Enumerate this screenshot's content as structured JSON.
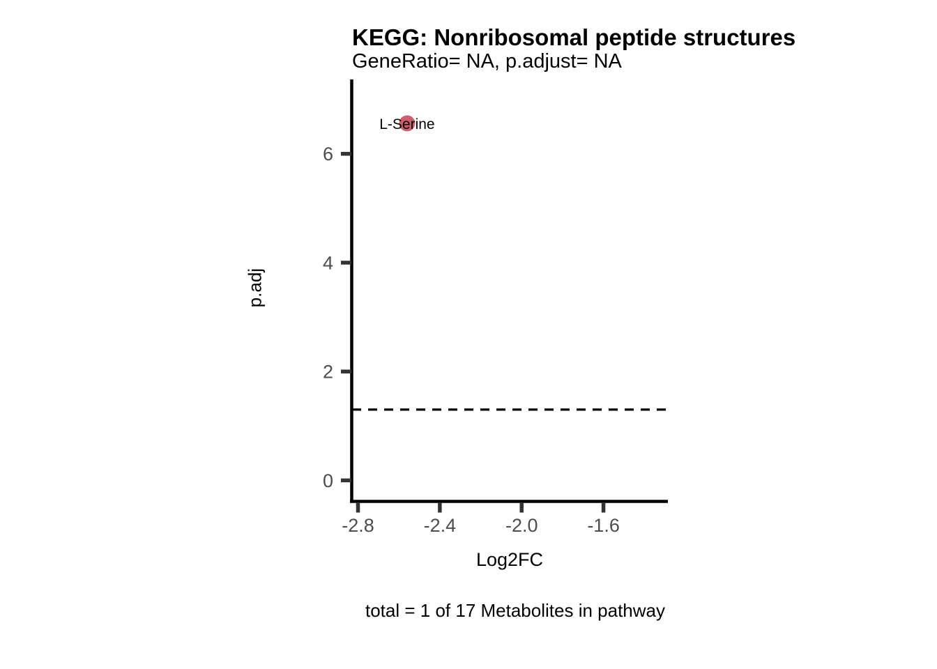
{
  "chart_data": {
    "type": "scatter",
    "title": "KEGG: Nonribosomal peptide structures",
    "subtitle": "GeneRatio= NA, p.adjust= NA",
    "caption": "total = 1 of 17 Metabolites in pathway",
    "xlabel": "Log2FC",
    "ylabel": "p.adj",
    "xlim": [
      -2.829,
      -1.285
    ],
    "ylim": [
      -0.354,
      7.366
    ],
    "x_ticks": [
      -2.8,
      -2.4,
      -2.0,
      -1.6
    ],
    "x_tick_labels": [
      "-2.8",
      "-2.4",
      "-2.0",
      "-1.6"
    ],
    "y_ticks": [
      0,
      2,
      4,
      6
    ],
    "y_tick_labels": [
      "0",
      "2",
      "4",
      "6"
    ],
    "grid": false,
    "legend": false,
    "background": "#ffffff",
    "points": [
      {
        "label": "L-Serine",
        "x": -2.56,
        "y": 6.56,
        "color": "#CE5F6E",
        "radius": 11.5
      }
    ],
    "hline": {
      "y": 1.301,
      "style": "dashed",
      "color": "#000000"
    }
  },
  "colors": {
    "axis_line": "#000000",
    "tick_mark": "#333333",
    "tick_label": "#4d4d4d",
    "text": "#000000",
    "point": "#CE5F6E"
  }
}
